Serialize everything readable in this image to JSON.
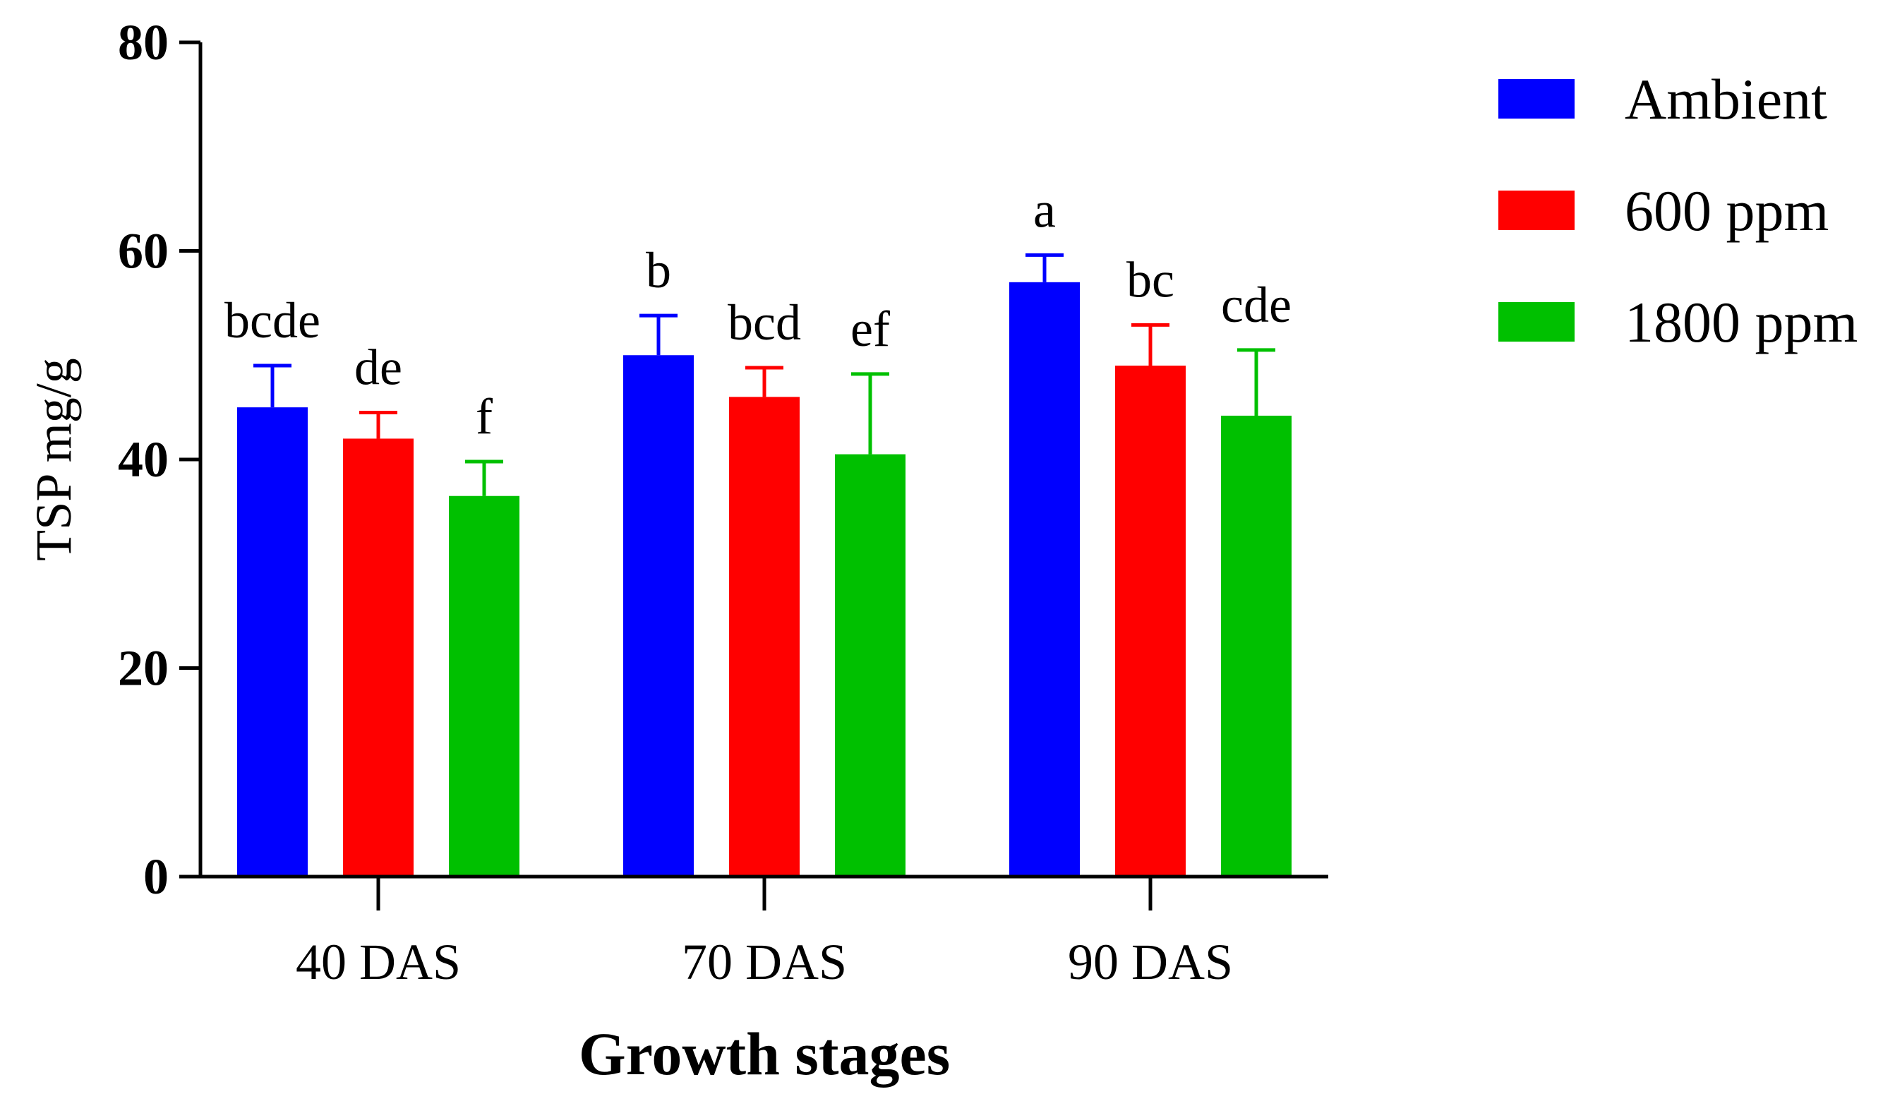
{
  "chart_data": {
    "type": "bar",
    "title": "",
    "xlabel": "Growth stages",
    "ylabel": "TSP mg/g",
    "ylim": [
      0,
      80
    ],
    "yticks": [
      0,
      20,
      40,
      60,
      80
    ],
    "categories": [
      "40 DAS",
      "70 DAS",
      "90 DAS"
    ],
    "legend_position": "top-right",
    "series": [
      {
        "name": "Ambient",
        "color": "#0000ff",
        "values": [
          45,
          50,
          57
        ],
        "errors": [
          4,
          3.8,
          2.6
        ],
        "labels": [
          "bcde",
          "b",
          "a"
        ]
      },
      {
        "name": "600 ppm",
        "color": "#ff0000",
        "values": [
          42,
          46,
          49
        ],
        "errors": [
          2.5,
          2.8,
          3.9
        ],
        "labels": [
          "de",
          "bcd",
          "bc"
        ]
      },
      {
        "name": "1800 ppm",
        "color": "#00c000",
        "values": [
          36.5,
          40.5,
          44.2
        ],
        "errors": [
          3.3,
          7.7,
          6.3
        ],
        "labels": [
          "f",
          "ef",
          "cde"
        ]
      }
    ]
  }
}
